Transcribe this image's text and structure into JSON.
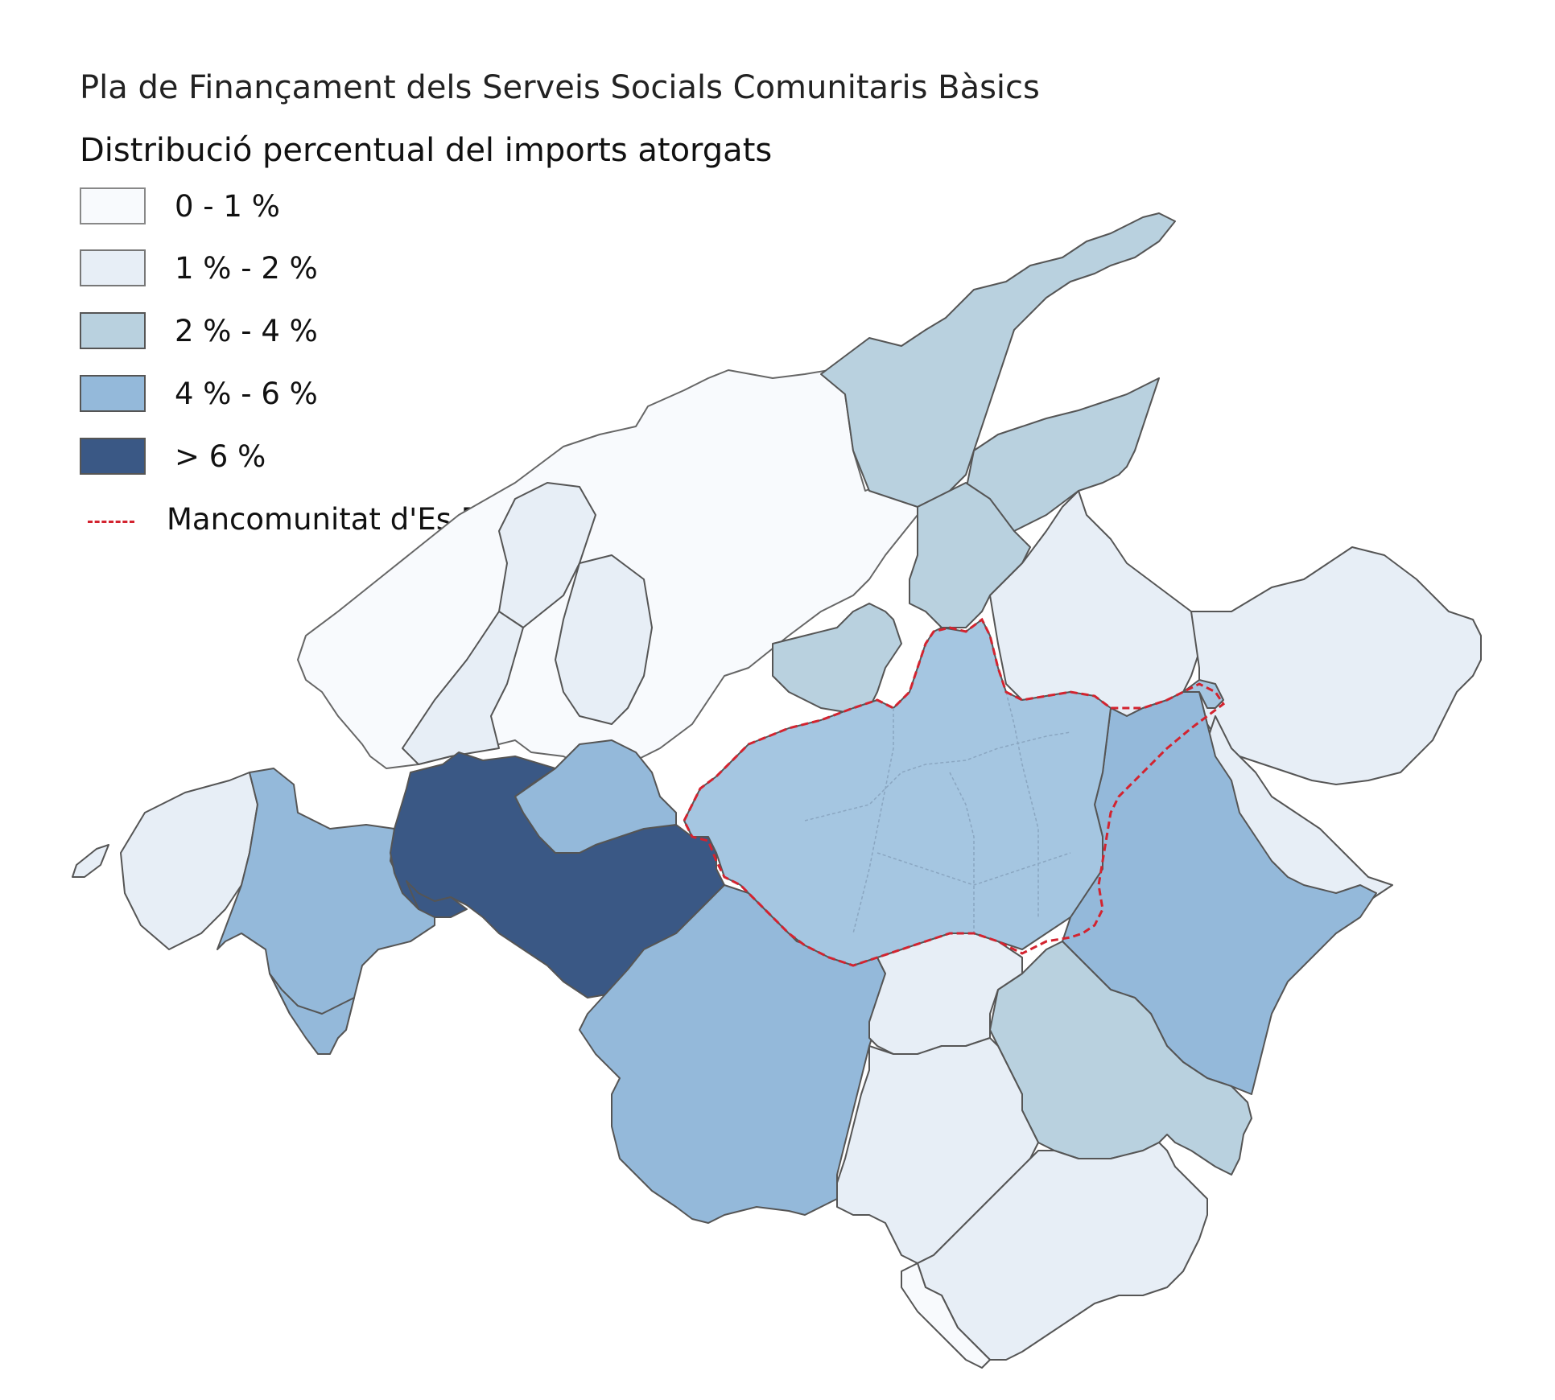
{
  "title": "Pla de Finançament dels Serveis Socials Comunitaris Bàsics",
  "subtitle": "Distribució percentual del imports atorgats",
  "legend": {
    "classes": [
      {
        "label": "0 - 1 %",
        "color": "#f8fafd"
      },
      {
        "label": "1 % - 2 %",
        "color": "#e7eef6"
      },
      {
        "label": "2 % - 4 %",
        "color": "#b9d1df"
      },
      {
        "label": "4 % - 6 %",
        "color": "#94b9da"
      },
      {
        "label": "> 6 %",
        "color": "#3a5885"
      }
    ],
    "boundary": {
      "label": "Mancomunitat d'Es Pla",
      "color": "#d3232f"
    }
  },
  "colors": {
    "municipal_border": "#555555",
    "coast": "#9a9a9a",
    "mancomunitat_border": "#d3232f"
  }
}
